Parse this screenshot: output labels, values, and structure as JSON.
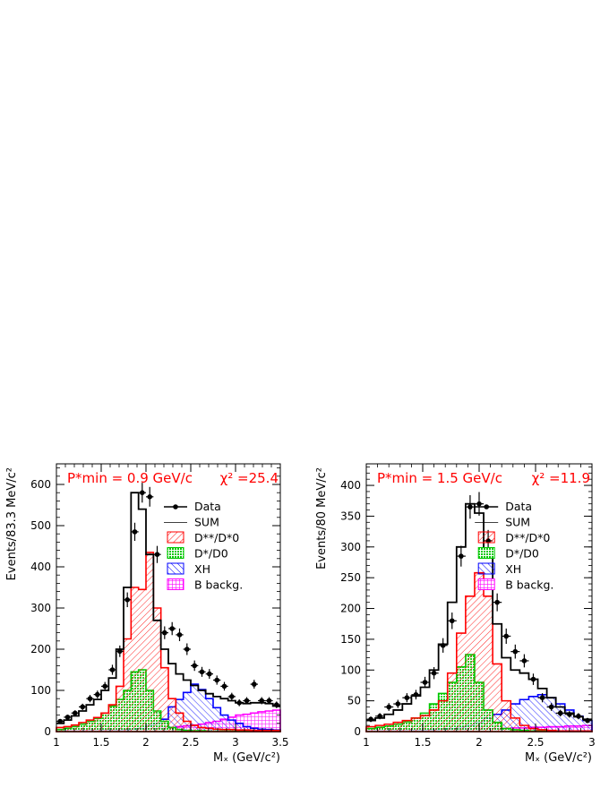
{
  "chart_data": [
    {
      "type": "bar",
      "ylabel": "Events/83.3 MeV/c²",
      "xlabel": "Mₓ (GeV/c²)",
      "annotation_pmin": "P*min = 0.9 GeV/c",
      "annotation_chi2": "χ² =25.4",
      "xlim": [
        1,
        3.5
      ],
      "ylim": [
        0,
        650
      ],
      "xticks": [
        1,
        1.5,
        2,
        2.5,
        3,
        3.5
      ],
      "xtick_labels": [
        "1",
        "1.5",
        "2",
        "2.5",
        "3",
        "3.5"
      ],
      "yticks": [
        0,
        100,
        200,
        300,
        400,
        500,
        600
      ],
      "ytick_labels": [
        "0",
        "100",
        "200",
        "300",
        "400",
        "500",
        "600"
      ],
      "bin_edges": [
        1,
        1.0833,
        1.1667,
        1.25,
        1.3333,
        1.4167,
        1.5,
        1.5833,
        1.6667,
        1.75,
        1.8333,
        1.9167,
        2,
        2.0833,
        2.1667,
        2.25,
        2.3333,
        2.4167,
        2.5,
        2.5833,
        2.6667,
        2.75,
        2.8333,
        2.9167,
        3,
        3.0833,
        3.1667,
        3.25,
        3.3333,
        3.4167,
        3.5
      ],
      "legend": {
        "placement": "top-right",
        "entries": [
          "Data",
          "SUM",
          "D**/D*0",
          "D*/D0",
          "XH",
          "B backg."
        ]
      },
      "colors": {
        "data": "#000000",
        "sum": "#000000",
        "dstarstar": "#ff0000",
        "dstar": "#00c800",
        "xh": "#0000ff",
        "bbkg": "#ff00ff",
        "annotation": "#ff0000"
      },
      "series": [
        {
          "name": "Data",
          "x": [
            1.042,
            1.125,
            1.208,
            1.292,
            1.375,
            1.458,
            1.542,
            1.625,
            1.708,
            1.792,
            1.875,
            1.958,
            2.042,
            2.125,
            2.208,
            2.292,
            2.375,
            2.458,
            2.542,
            2.625,
            2.708,
            2.792,
            2.875,
            2.958,
            3.042,
            3.125,
            3.208,
            3.292,
            3.375,
            3.458
          ],
          "y": [
            25,
            35,
            45,
            60,
            80,
            90,
            110,
            150,
            195,
            320,
            485,
            580,
            570,
            430,
            240,
            250,
            235,
            200,
            160,
            145,
            140,
            125,
            110,
            85,
            70,
            75,
            115,
            75,
            75,
            65
          ]
        },
        {
          "name": "SUM",
          "values": [
            20,
            28,
            38,
            50,
            65,
            78,
            100,
            130,
            200,
            350,
            580,
            540,
            430,
            270,
            200,
            165,
            140,
            125,
            112,
            100,
            92,
            85,
            80,
            75,
            70,
            68,
            70,
            70,
            68,
            62
          ]
        },
        {
          "name": "D**/D*0",
          "values": [
            10,
            12,
            16,
            22,
            28,
            34,
            45,
            65,
            110,
            225,
            350,
            345,
            435,
            300,
            155,
            80,
            45,
            25,
            15,
            10,
            8,
            6,
            5,
            5,
            4,
            4,
            3,
            3,
            3,
            3
          ]
        },
        {
          "name": "D*/D0",
          "values": [
            5,
            8,
            12,
            18,
            25,
            32,
            45,
            62,
            78,
            100,
            145,
            150,
            100,
            50,
            25,
            10,
            5,
            3,
            2,
            2,
            1,
            1,
            1,
            1,
            1,
            1,
            1,
            1,
            1,
            1
          ]
        },
        {
          "name": "XH",
          "values": [
            1,
            1,
            1,
            1,
            1,
            1,
            2,
            2,
            3,
            4,
            6,
            8,
            15,
            20,
            30,
            60,
            78,
            95,
            115,
            102,
            80,
            58,
            40,
            28,
            20,
            12,
            8,
            6,
            5,
            4
          ]
        },
        {
          "name": "B backg.",
          "values": [
            2,
            3,
            3,
            4,
            4,
            5,
            5,
            5,
            5,
            6,
            6,
            6,
            7,
            8,
            9,
            10,
            12,
            14,
            16,
            18,
            22,
            25,
            30,
            35,
            40,
            42,
            45,
            48,
            50,
            52
          ]
        }
      ]
    },
    {
      "type": "bar",
      "ylabel": "Events/80 MeV/c²",
      "xlabel": "Mₓ (GeV/c²)",
      "annotation_pmin": "P*min = 1.5 GeV/c",
      "annotation_chi2": "χ² =11.9",
      "xlim": [
        1,
        3
      ],
      "ylim": [
        0,
        435
      ],
      "xticks": [
        1,
        1.5,
        2,
        2.5,
        3
      ],
      "xtick_labels": [
        "1",
        "1.5",
        "2",
        "2.5",
        "3"
      ],
      "yticks": [
        0,
        50,
        100,
        150,
        200,
        250,
        300,
        350,
        400
      ],
      "ytick_labels": [
        "0",
        "50",
        "100",
        "150",
        "200",
        "250",
        "300",
        "350",
        "400"
      ],
      "bin_edges": [
        1,
        1.08,
        1.16,
        1.24,
        1.32,
        1.4,
        1.48,
        1.56,
        1.64,
        1.72,
        1.8,
        1.88,
        1.96,
        2.04,
        2.12,
        2.2,
        2.28,
        2.36,
        2.44,
        2.52,
        2.6,
        2.68,
        2.76,
        2.84,
        2.92,
        3
      ],
      "legend": {
        "placement": "top-right",
        "entries": [
          "Data",
          "SUM",
          "D**/D*0",
          "D*/D0",
          "XH",
          "B backg."
        ]
      },
      "colors": {
        "data": "#000000",
        "sum": "#000000",
        "dstarstar": "#ff0000",
        "dstar": "#00c800",
        "xh": "#0000ff",
        "bbkg": "#ff00ff",
        "annotation": "#ff0000"
      },
      "series": [
        {
          "name": "Data",
          "x": [
            1.04,
            1.12,
            1.2,
            1.28,
            1.36,
            1.44,
            1.52,
            1.6,
            1.68,
            1.76,
            1.84,
            1.92,
            2,
            2.08,
            2.16,
            2.24,
            2.32,
            2.4,
            2.48,
            2.56,
            2.64,
            2.72,
            2.8,
            2.88,
            2.96
          ],
          "y": [
            20,
            25,
            40,
            45,
            55,
            60,
            80,
            95,
            140,
            180,
            285,
            365,
            370,
            310,
            210,
            155,
            130,
            115,
            85,
            55,
            40,
            30,
            28,
            25,
            18
          ]
        },
        {
          "name": "SUM",
          "values": [
            18,
            22,
            28,
            35,
            45,
            58,
            72,
            100,
            142,
            210,
            300,
            370,
            355,
            285,
            175,
            120,
            100,
            95,
            85,
            70,
            55,
            40,
            30,
            24,
            20
          ]
        },
        {
          "name": "D**/D*0",
          "values": [
            8,
            10,
            12,
            15,
            18,
            22,
            26,
            35,
            50,
            95,
            160,
            220,
            258,
            220,
            110,
            50,
            22,
            10,
            5,
            3,
            2,
            1,
            1,
            1,
            1
          ]
        },
        {
          "name": "D*/D0",
          "values": [
            5,
            7,
            9,
            12,
            16,
            22,
            30,
            45,
            62,
            80,
            105,
            125,
            80,
            35,
            15,
            5,
            3,
            2,
            1,
            1,
            1,
            1,
            1,
            1,
            1
          ]
        },
        {
          "name": "XH",
          "values": [
            1,
            1,
            1,
            1,
            1,
            2,
            2,
            3,
            4,
            5,
            7,
            10,
            15,
            22,
            28,
            35,
            45,
            52,
            57,
            60,
            55,
            45,
            35,
            25,
            18
          ]
        },
        {
          "name": "B backg.",
          "values": [
            2,
            2,
            3,
            3,
            3,
            3,
            3,
            3,
            4,
            4,
            4,
            4,
            5,
            5,
            5,
            5,
            6,
            6,
            7,
            7,
            8,
            8,
            9,
            9,
            10
          ]
        }
      ]
    }
  ]
}
